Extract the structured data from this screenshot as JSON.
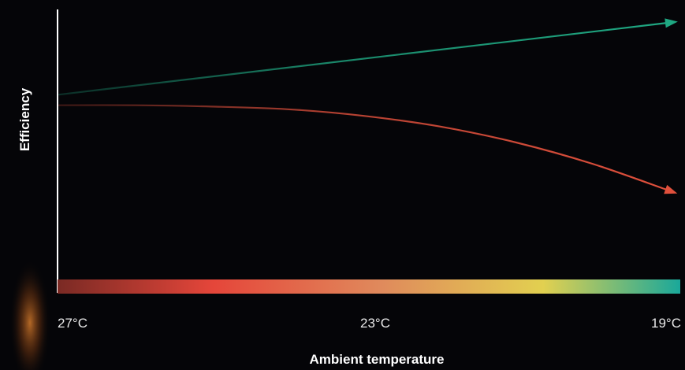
{
  "chart_data": {
    "type": "line",
    "title": "",
    "xlabel": "Ambient temperature",
    "ylabel": "Efficiency",
    "x_ticks": [
      "27°C",
      "23°C",
      "19°C"
    ],
    "x_range": [
      27,
      19
    ],
    "ylim": [
      0,
      10
    ],
    "grid": false,
    "legend": "none",
    "series": [
      {
        "color": "#1fa882",
        "x": [
          27,
          19
        ],
        "y": [
          6.8,
          9.5
        ]
      },
      {
        "color": "#e0503c",
        "x": [
          27,
          26,
          25,
          24,
          23,
          22,
          21,
          20,
          19
        ],
        "y": [
          6.4,
          6.4,
          6.35,
          6.25,
          6.0,
          5.6,
          5.0,
          4.2,
          3.2
        ]
      }
    ],
    "temperature_scale": {
      "colors": [
        "#7a2a24",
        "#e5463a",
        "#e08a5c",
        "#e2d050",
        "#1aa89a"
      ],
      "stops": [
        0,
        0.25,
        0.52,
        0.78,
        1
      ]
    }
  }
}
